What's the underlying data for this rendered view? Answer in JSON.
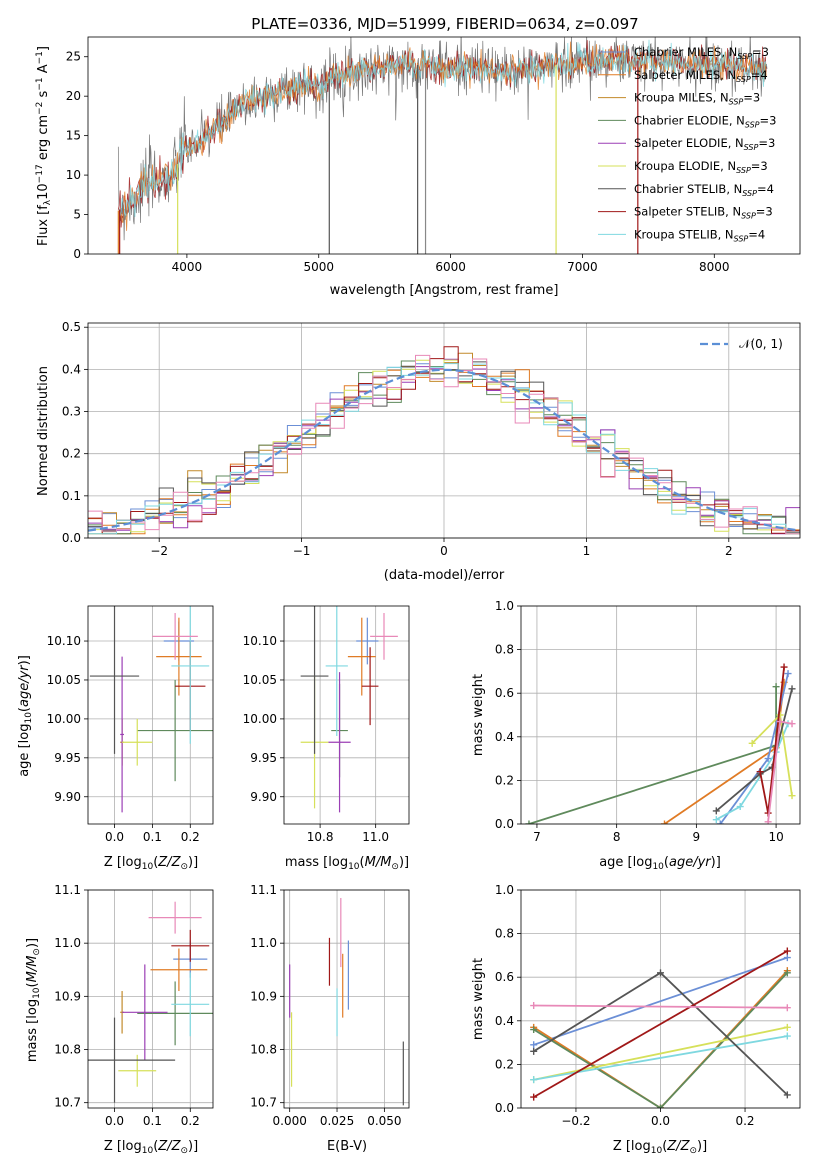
{
  "title": "PLATE=0336, MJD=51999, FIBERID=0634, z=0.097",
  "colors": {
    "Chabrier MILES": "#6b8fd6",
    "Salpeter MILES": "#e07b25",
    "Kroupa MILES": "#c2892a",
    "Chabrier ELODIE": "#5f8a5c",
    "Salpeter ELODIE": "#9b3fb5",
    "Kroupa ELODIE": "#d6e05a",
    "Chabrier STELIB": "#555555",
    "Salpeter STELIB": "#a01818",
    "Kroupa STELIB": "#7fd8e0",
    "pink": "#e889b8",
    "normal": "#5b8fd6"
  },
  "chart_data": [
    {
      "type": "line",
      "xlabel": "wavelength [Angstrom, rest frame]",
      "ylabel": "Flux [f_λ 10^-17 erg cm^-2 s^-1 A^-1]",
      "xlim": [
        3250,
        8650
      ],
      "ylim": [
        0,
        27.5
      ],
      "xticks": [
        4000,
        5000,
        6000,
        7000,
        8000
      ],
      "yticks": [
        0,
        5,
        10,
        15,
        20,
        25
      ],
      "grid": false,
      "legend_position": "right",
      "legend": [
        {
          "label": "Chabrier MILES, N",
          "sub": "SSP",
          "val": "=3"
        },
        {
          "label": "Salpeter MILES, N",
          "sub": "SSP",
          "val": "=4"
        },
        {
          "label": "Kroupa MILES, N",
          "sub": "SSP",
          "val": "=3"
        },
        {
          "label": "Chabrier ELODIE, N",
          "sub": "SSP",
          "val": "=3"
        },
        {
          "label": "Salpeter ELODIE, N",
          "sub": "SSP",
          "val": "=3"
        },
        {
          "label": "Kroupa ELODIE, N",
          "sub": "SSP",
          "val": "=3"
        },
        {
          "label": "Chabrier STELIB, N",
          "sub": "SSP",
          "val": "=4"
        },
        {
          "label": "Salpeter STELIB, N",
          "sub": "SSP",
          "val": "=3"
        },
        {
          "label": "Kroupa STELIB, N",
          "sub": "SSP",
          "val": "=4"
        }
      ],
      "continuum": {
        "x": [
          3480,
          3600,
          3700,
          3800,
          3900,
          3950,
          4000,
          4100,
          4200,
          4300,
          4400,
          4500,
          4700,
          4900,
          5000,
          5100,
          5200,
          5400,
          5600,
          5800,
          6000,
          6200,
          6400,
          6600,
          6800,
          7000,
          7200,
          7400,
          7600,
          7800,
          8000,
          8200,
          8400
        ],
        "y": [
          5.5,
          6.8,
          9,
          9.5,
          9.8,
          12.5,
          13.5,
          14.2,
          15.8,
          17,
          18.5,
          19.5,
          20.5,
          21.5,
          21,
          22.5,
          23,
          23.5,
          23.8,
          24,
          23.8,
          23.5,
          23,
          23.5,
          24,
          24.5,
          24.5,
          24.5,
          24.5,
          24.2,
          24,
          23.8,
          23.5
        ]
      },
      "drop_lines": [
        3480,
        3490,
        3930,
        5080,
        5750,
        5810,
        6800,
        7420
      ]
    },
    {
      "type": "line",
      "xlabel": "(data-model)/error",
      "ylabel": "Normed distribution",
      "xlim": [
        -2.5,
        2.5
      ],
      "ylim": [
        0,
        0.51
      ],
      "xticks": [
        -2,
        -1,
        0,
        1,
        2
      ],
      "yticks": [
        0.0,
        0.1,
        0.2,
        0.3,
        0.4,
        0.5
      ],
      "grid": true,
      "legend_position": "upper right",
      "legend": [
        {
          "label": "𝒩(0, 1)"
        }
      ],
      "normal": {
        "mean": 0,
        "sigma": 1
      },
      "histogram_bins": 50
    },
    {
      "type": "scatter",
      "xlabel": "Z [log10(Z/Z⊙)]",
      "ylabel": "age  [log10(age/yr)]",
      "xlim": [
        -0.07,
        0.26
      ],
      "ylim": [
        9.865,
        10.145
      ],
      "xticks": [
        0.0,
        0.1,
        0.2
      ],
      "yticks": [
        9.9,
        9.95,
        10.0,
        10.05,
        10.1
      ],
      "grid": true,
      "points": [
        {
          "series": "Chabrier MILES",
          "x": 0.17,
          "y": 10.1,
          "xerr": 0.04,
          "yerr": 0.025
        },
        {
          "series": "Salpeter MILES",
          "x": 0.17,
          "y": 10.08,
          "xerr": 0.06,
          "yerr": 0.05
        },
        {
          "series": "Kroupa MILES",
          "x": 0.02,
          "y": 9.97,
          "xerr": 0.005,
          "yerr": 0.03
        },
        {
          "series": "Chabrier ELODIE",
          "x": 0.16,
          "y": 9.985,
          "xerr": 0.1,
          "yerr": 0.065
        },
        {
          "series": "Salpeter ELODIE",
          "x": 0.02,
          "y": 9.98,
          "xerr": 0.005,
          "yerr": 0.1
        },
        {
          "series": "Kroupa ELODIE",
          "x": 0.06,
          "y": 9.97,
          "xerr": 0.04,
          "yerr": 0.03
        },
        {
          "series": "Chabrier STELIB",
          "x": 0.0,
          "y": 10.055,
          "xerr": 0.065,
          "yerr": 0.1
        },
        {
          "series": "Salpeter STELIB",
          "x": 0.2,
          "y": 10.042,
          "xerr": 0.04,
          "yerr": 0.058
        },
        {
          "series": "Kroupa STELIB",
          "x": 0.2,
          "y": 10.068,
          "xerr": 0.05,
          "yerr": 0.1
        },
        {
          "series": "pink",
          "x": 0.16,
          "y": 10.106,
          "xerr": 0.06,
          "yerr": 0.03
        }
      ]
    },
    {
      "type": "scatter",
      "xlabel": "mass [log10(M/M⊙)]",
      "ylabel": "",
      "xlim": [
        10.67,
        11.12
      ],
      "ylim": [
        9.865,
        10.145
      ],
      "xticks": [
        10.8,
        11.0
      ],
      "yticks": [
        9.9,
        9.95,
        10.0,
        10.05,
        10.1
      ],
      "grid": true,
      "points": [
        {
          "series": "Chabrier MILES",
          "x": 10.97,
          "y": 10.1,
          "xerr": 0.04,
          "yerr": 0.03
        },
        {
          "series": "Salpeter MILES",
          "x": 10.95,
          "y": 10.08,
          "xerr": 0.05,
          "yerr": 0.05
        },
        {
          "series": "Chabrier ELODIE",
          "x": 10.87,
          "y": 9.985,
          "xerr": 0.03,
          "yerr": 0.06
        },
        {
          "series": "Salpeter ELODIE",
          "x": 10.87,
          "y": 9.97,
          "xerr": 0.04,
          "yerr": 0.09
        },
        {
          "series": "Kroupa ELODIE",
          "x": 10.78,
          "y": 9.97,
          "xerr": 0.05,
          "yerr": 0.085
        },
        {
          "series": "Chabrier STELIB",
          "x": 10.78,
          "y": 10.055,
          "xerr": 0.05,
          "yerr": 0.1
        },
        {
          "series": "Salpeter STELIB",
          "x": 10.98,
          "y": 10.042,
          "xerr": 0.03,
          "yerr": 0.05
        },
        {
          "series": "Kroupa STELIB",
          "x": 10.86,
          "y": 10.068,
          "xerr": 0.04,
          "yerr": 0.09
        },
        {
          "series": "pink",
          "x": 11.03,
          "y": 10.106,
          "xerr": 0.05,
          "yerr": 0.03
        }
      ]
    },
    {
      "type": "line",
      "xlabel": "age  [log10(age/yr)]",
      "ylabel": "mass weight",
      "xlim": [
        6.8,
        10.3
      ],
      "ylim": [
        0,
        1.0
      ],
      "xticks": [
        7,
        8,
        9,
        10
      ],
      "yticks": [
        0.0,
        0.2,
        0.4,
        0.6,
        0.8,
        1.0
      ],
      "grid": true,
      "series": [
        {
          "name": "Chabrier ELODIE",
          "x": [
            6.9,
            10.0,
            10.0
          ],
          "y": [
            0.0,
            0.36,
            0.63
          ]
        },
        {
          "name": "Salpeter MILES",
          "x": [
            8.6,
            10.0,
            10.1
          ],
          "y": [
            0.0,
            0.35,
            0.65
          ]
        },
        {
          "name": "Chabrier MILES",
          "x": [
            9.3,
            9.9,
            10.15
          ],
          "y": [
            0.0,
            0.3,
            0.69
          ]
        },
        {
          "name": "Kroupa STELIB",
          "x": [
            9.25,
            9.55,
            10.0,
            10.15
          ],
          "y": [
            0.02,
            0.08,
            0.33,
            0.46
          ]
        },
        {
          "name": "Kroupa ELODIE",
          "x": [
            9.7,
            10.05,
            10.2
          ],
          "y": [
            0.37,
            0.5,
            0.13
          ]
        },
        {
          "name": "Chabrier STELIB",
          "x": [
            9.25,
            9.8,
            9.95,
            10.2
          ],
          "y": [
            0.06,
            0.23,
            0.26,
            0.62
          ]
        },
        {
          "name": "Salpeter STELIB",
          "x": [
            9.8,
            9.9,
            10.1
          ],
          "y": [
            0.24,
            0.05,
            0.72
          ]
        },
        {
          "name": "pink",
          "x": [
            9.9,
            10.05,
            10.2
          ],
          "y": [
            0.01,
            0.47,
            0.46
          ]
        }
      ]
    },
    {
      "type": "scatter",
      "xlabel": "Z [log10(Z/Z⊙)]",
      "ylabel": "mass [log10(M/M⊙)]",
      "xlim": [
        -0.07,
        0.26
      ],
      "ylim": [
        10.69,
        11.1
      ],
      "xticks": [
        0.0,
        0.1,
        0.2
      ],
      "yticks": [
        10.7,
        10.8,
        10.9,
        11.0,
        11.1
      ],
      "grid": true,
      "points": [
        {
          "series": "Chabrier MILES",
          "x": 0.2,
          "y": 10.97,
          "xerr": 0.045,
          "yerr": 0.035
        },
        {
          "series": "Salpeter MILES",
          "x": 0.17,
          "y": 10.95,
          "xerr": 0.075,
          "yerr": 0.04
        },
        {
          "series": "Kroupa MILES",
          "x": 0.02,
          "y": 10.87,
          "xerr": 0.005,
          "yerr": 0.04
        },
        {
          "series": "Chabrier ELODIE",
          "x": 0.16,
          "y": 10.868,
          "xerr": 0.1,
          "yerr": 0.06
        },
        {
          "series": "Salpeter ELODIE",
          "x": 0.08,
          "y": 10.87,
          "xerr": 0.06,
          "yerr": 0.09
        },
        {
          "series": "Kroupa ELODIE",
          "x": 0.06,
          "y": 10.76,
          "xerr": 0.05,
          "yerr": 0.03
        },
        {
          "series": "Chabrier STELIB",
          "x": 0.0,
          "y": 10.78,
          "xerr": 0.16,
          "yerr": 0.08
        },
        {
          "series": "Salpeter STELIB",
          "x": 0.2,
          "y": 10.995,
          "xerr": 0.05,
          "yerr": 0.03
        },
        {
          "series": "Kroupa STELIB",
          "x": 0.2,
          "y": 10.885,
          "xerr": 0.05,
          "yerr": 0.06
        },
        {
          "series": "pink",
          "x": 0.16,
          "y": 11.048,
          "xerr": 0.07,
          "yerr": 0.03
        }
      ]
    },
    {
      "type": "scatter",
      "xlabel": "E(B-V)",
      "ylabel": "",
      "xlim": [
        -0.003,
        0.063
      ],
      "ylim": [
        10.69,
        11.1
      ],
      "xticks": [
        0.0,
        0.025,
        0.05
      ],
      "xticklabels": [
        "0.000",
        "0.025",
        "0.050"
      ],
      "yticks": [
        10.7,
        10.8,
        10.9,
        11.0,
        11.1
      ],
      "grid": true,
      "points": [
        {
          "series": "Chabrier MILES",
          "x": 0.031,
          "y": 10.94,
          "yerr": 0.065
        },
        {
          "series": "Salpeter MILES",
          "x": 0.028,
          "y": 10.92,
          "yerr": 0.06
        },
        {
          "series": "Salpeter ELODIE",
          "x": 0.0,
          "y": 10.91,
          "yerr": 0.05
        },
        {
          "series": "Kroupa ELODIE",
          "x": 0.001,
          "y": 10.8,
          "yerr": 0.07
        },
        {
          "series": "Chabrier STELIB",
          "x": 0.06,
          "y": 10.755,
          "yerr": 0.06
        },
        {
          "series": "Salpeter STELIB",
          "x": 0.021,
          "y": 10.965,
          "yerr": 0.045
        },
        {
          "series": "Kroupa STELIB",
          "x": 0.025,
          "y": 10.87,
          "yerr": 0.045
        },
        {
          "series": "pink",
          "x": 0.027,
          "y": 11.02,
          "yerr": 0.065
        }
      ]
    },
    {
      "type": "line",
      "xlabel": "Z [log10(Z/Z⊙)]",
      "ylabel": "mass weight",
      "xlim": [
        -0.33,
        0.33
      ],
      "ylim": [
        0,
        1.0
      ],
      "xticks": [
        -0.2,
        0.0,
        0.2
      ],
      "yticks": [
        0.0,
        0.2,
        0.4,
        0.6,
        0.8,
        1.0
      ],
      "grid": true,
      "series": [
        {
          "name": "Chabrier MILES",
          "x": [
            -0.3,
            0.3
          ],
          "y": [
            0.29,
            0.69
          ]
        },
        {
          "name": "Salpeter MILES",
          "x": [
            -0.3,
            0.0,
            0.3
          ],
          "y": [
            0.37,
            0.0,
            0.63
          ]
        },
        {
          "name": "Chabrier ELODIE",
          "x": [
            -0.3,
            0.0,
            0.3
          ],
          "y": [
            0.36,
            0.0,
            0.62
          ]
        },
        {
          "name": "Kroupa ELODIE",
          "x": [
            -0.3,
            0.3
          ],
          "y": [
            0.13,
            0.37
          ]
        },
        {
          "name": "Kroupa STELIB",
          "x": [
            -0.3,
            0.3
          ],
          "y": [
            0.13,
            0.33
          ]
        },
        {
          "name": "Chabrier STELIB",
          "x": [
            -0.3,
            0.0,
            0.3
          ],
          "y": [
            0.26,
            0.62,
            0.06
          ]
        },
        {
          "name": "Salpeter STELIB",
          "x": [
            -0.3,
            0.3
          ],
          "y": [
            0.05,
            0.72
          ]
        },
        {
          "name": "pink",
          "x": [
            -0.3,
            0.3
          ],
          "y": [
            0.47,
            0.46
          ]
        }
      ]
    }
  ]
}
